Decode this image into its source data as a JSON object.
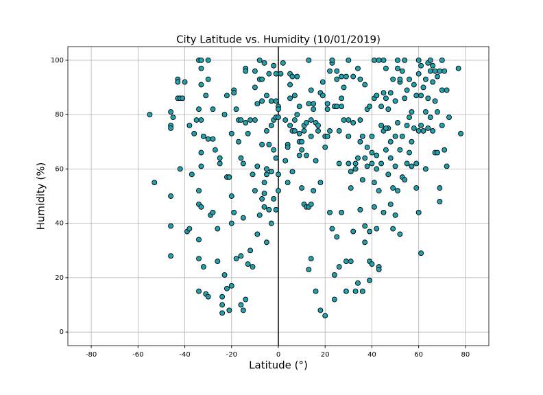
{
  "chart_data": {
    "type": "scatter",
    "title": "City Latitude vs. Humidity (10/01/2019)",
    "x_label": "Latitude (°)",
    "y_label": "Humidity (%)",
    "xlim": [
      -90,
      90
    ],
    "ylim": [
      -5,
      105
    ],
    "xticks": [
      -80,
      -60,
      -40,
      -20,
      0,
      20,
      40,
      60,
      80
    ],
    "yticks": [
      0,
      20,
      40,
      60,
      80,
      100
    ],
    "grid": true,
    "color": "#20a2ae",
    "edgecolor": "#000000",
    "vline": 0,
    "x": [
      -55,
      -53,
      -46,
      -46,
      -46,
      -46,
      -46,
      -46,
      -45,
      -43,
      -43,
      -43,
      -42,
      -42,
      -41,
      -40,
      -39,
      -38,
      -38,
      -37,
      -36,
      -34,
      -33,
      -34,
      -34,
      -34,
      -33,
      -34,
      -34,
      -34,
      -33,
      -33,
      -33,
      -33,
      -33,
      -32,
      -32,
      -31,
      -31,
      -30,
      -30,
      -30,
      -30,
      -29,
      -28,
      -28,
      -27,
      -26,
      -26,
      -25,
      -24,
      -24,
      -24,
      -23,
      -23,
      -22,
      -22,
      -21,
      -22,
      -21,
      -20,
      -20,
      -20,
      -20,
      -19,
      -19,
      -19,
      -18,
      -18,
      -17,
      -17,
      -16,
      -16,
      -16,
      -16,
      -15,
      -15,
      -15,
      -14,
      -14,
      -14,
      -14,
      -13,
      -13,
      -12,
      -11,
      -11,
      -10,
      -10,
      -10,
      -10,
      -9,
      -9,
      -9,
      -8,
      -8,
      -8,
      -7,
      -7,
      -7,
      -7,
      -6,
      -6,
      -6,
      -6,
      -5,
      -5,
      -5,
      -5,
      -4,
      -4,
      -4,
      -3,
      -3,
      -3,
      -3,
      -2,
      -2,
      -2,
      -2,
      -1,
      -1,
      -1,
      -1,
      0,
      0,
      0,
      0,
      0,
      -1,
      -12,
      -25,
      -28,
      -35,
      -5,
      1,
      2,
      3,
      3,
      4,
      4,
      4,
      5,
      5,
      5,
      5,
      6,
      6,
      6,
      7,
      7,
      7,
      8,
      8,
      9,
      9,
      9,
      9,
      10,
      10,
      10,
      11,
      11,
      11,
      12,
      12,
      12,
      13,
      13,
      13,
      13,
      14,
      14,
      14,
      14,
      14,
      15,
      15,
      15,
      16,
      16,
      16,
      17,
      17,
      18,
      18,
      18,
      19,
      19,
      20,
      20,
      20,
      21,
      21,
      21,
      22,
      22,
      22,
      23,
      23,
      23,
      24,
      24,
      24,
      25,
      25,
      25,
      25,
      26,
      26,
      26,
      27,
      27,
      27,
      27,
      28,
      28,
      29,
      29,
      29,
      30,
      30,
      30,
      31,
      31,
      31,
      32,
      32,
      32,
      33,
      33,
      33,
      34,
      34,
      34,
      35,
      35,
      35,
      35,
      36,
      36,
      36,
      37,
      37,
      37,
      37,
      38,
      38,
      38,
      39,
      39,
      39,
      39,
      40,
      40,
      40,
      41,
      41,
      41,
      41,
      42,
      42,
      42,
      42,
      43,
      43,
      43,
      43,
      44,
      44,
      44,
      45,
      45,
      45,
      45,
      46,
      46,
      46,
      47,
      47,
      47,
      48,
      48,
      48,
      48,
      49,
      49,
      49,
      50,
      50,
      50,
      50,
      51,
      51,
      51,
      51,
      52,
      52,
      52,
      53,
      53,
      53,
      54,
      54,
      54,
      55,
      55,
      55,
      56,
      56,
      56,
      57,
      57,
      57,
      58,
      58,
      59,
      59,
      59,
      60,
      60,
      60,
      60,
      61,
      61,
      61,
      61,
      62,
      62,
      63,
      63,
      63,
      64,
      64,
      64,
      65,
      65,
      65,
      66,
      66,
      66,
      67,
      67,
      67,
      68,
      68,
      68,
      69,
      69,
      69,
      70,
      70,
      70,
      71,
      71,
      72,
      72,
      73,
      77,
      78,
      52,
      46,
      40,
      30
    ],
    "values": [
      80,
      55,
      81,
      76,
      75,
      50,
      39,
      28,
      79,
      93,
      92,
      86,
      86,
      60,
      86,
      92,
      37,
      38,
      76,
      58,
      73,
      100,
      100,
      82,
      52,
      47,
      46,
      34,
      27,
      15,
      91,
      97,
      66,
      61,
      78,
      72,
      24,
      87,
      14,
      13,
      100,
      93,
      71,
      43,
      71,
      82,
      67,
      38,
      26,
      64,
      13,
      7,
      10,
      80,
      21,
      87,
      57,
      57,
      16,
      8,
      17,
      50,
      40,
      73,
      89,
      88,
      44,
      82,
      27,
      70,
      78,
      78,
      64,
      10,
      28,
      8,
      42,
      62,
      97,
      96,
      77,
      12,
      73,
      25,
      30,
      58,
      24,
      96,
      90,
      78,
      52,
      84,
      36,
      61,
      100,
      93,
      43,
      69,
      93,
      85,
      49,
      99,
      46,
      51,
      55,
      87,
      58,
      74,
      33,
      95,
      69,
      45,
      85,
      76,
      59,
      40,
      98,
      67,
      49,
      78,
      79,
      45,
      64,
      85,
      83,
      82,
      52,
      58,
      79,
      95,
      78,
      62,
      44,
      78,
      60,
      95,
      99,
      78,
      63,
      69,
      55,
      68,
      95,
      86,
      76,
      91,
      59,
      74,
      94,
      78,
      87,
      74,
      94,
      80,
      65,
      70,
      73,
      83,
      53,
      70,
      67,
      47,
      74,
      76,
      46,
      65,
      77,
      46,
      100,
      84,
      23,
      27,
      47,
      72,
      78,
      89,
      84,
      52,
      82,
      77,
      63,
      15,
      76,
      74,
      55,
      8,
      88,
      92,
      87,
      72,
      6,
      68,
      82,
      84,
      72,
      74,
      44,
      96,
      99,
      100,
      38,
      83,
      12,
      21,
      96,
      93,
      83,
      35,
      62,
      24,
      74,
      94,
      83,
      44,
      86,
      78,
      90,
      15,
      26,
      94,
      78,
      72,
      62,
      53,
      59,
      26,
      37,
      94,
      77,
      60,
      15,
      62,
      97,
      64,
      18,
      45,
      70,
      93,
      78,
      15,
      72,
      56,
      33,
      91,
      39,
      64,
      68,
      82,
      61,
      37,
      83,
      26,
      19,
      25,
      72,
      66,
      55,
      100,
      86,
      46,
      38,
      60,
      87,
      65,
      24,
      100,
      23,
      52,
      76,
      83,
      62,
      88,
      100,
      44,
      74,
      97,
      67,
      86,
      82,
      58,
      75,
      88,
      70,
      47,
      64,
      93,
      38,
      53,
      72,
      85,
      61,
      43,
      97,
      100,
      77,
      52,
      92,
      67,
      36,
      96,
      72,
      57,
      100,
      86,
      56,
      89,
      76,
      62,
      93,
      79,
      66,
      81,
      70,
      61,
      91,
      75,
      87,
      53,
      62,
      100,
      95,
      74,
      44,
      98,
      87,
      29,
      76,
      90,
      74,
      93,
      81,
      60,
      99,
      86,
      75,
      100,
      96,
      79,
      98,
      92,
      74,
      96,
      85,
      66,
      94,
      81,
      66,
      96,
      53,
      48,
      100,
      89,
      76,
      96,
      67,
      89,
      61,
      79,
      97,
      73,
      93,
      75,
      62,
      100
    ]
  }
}
